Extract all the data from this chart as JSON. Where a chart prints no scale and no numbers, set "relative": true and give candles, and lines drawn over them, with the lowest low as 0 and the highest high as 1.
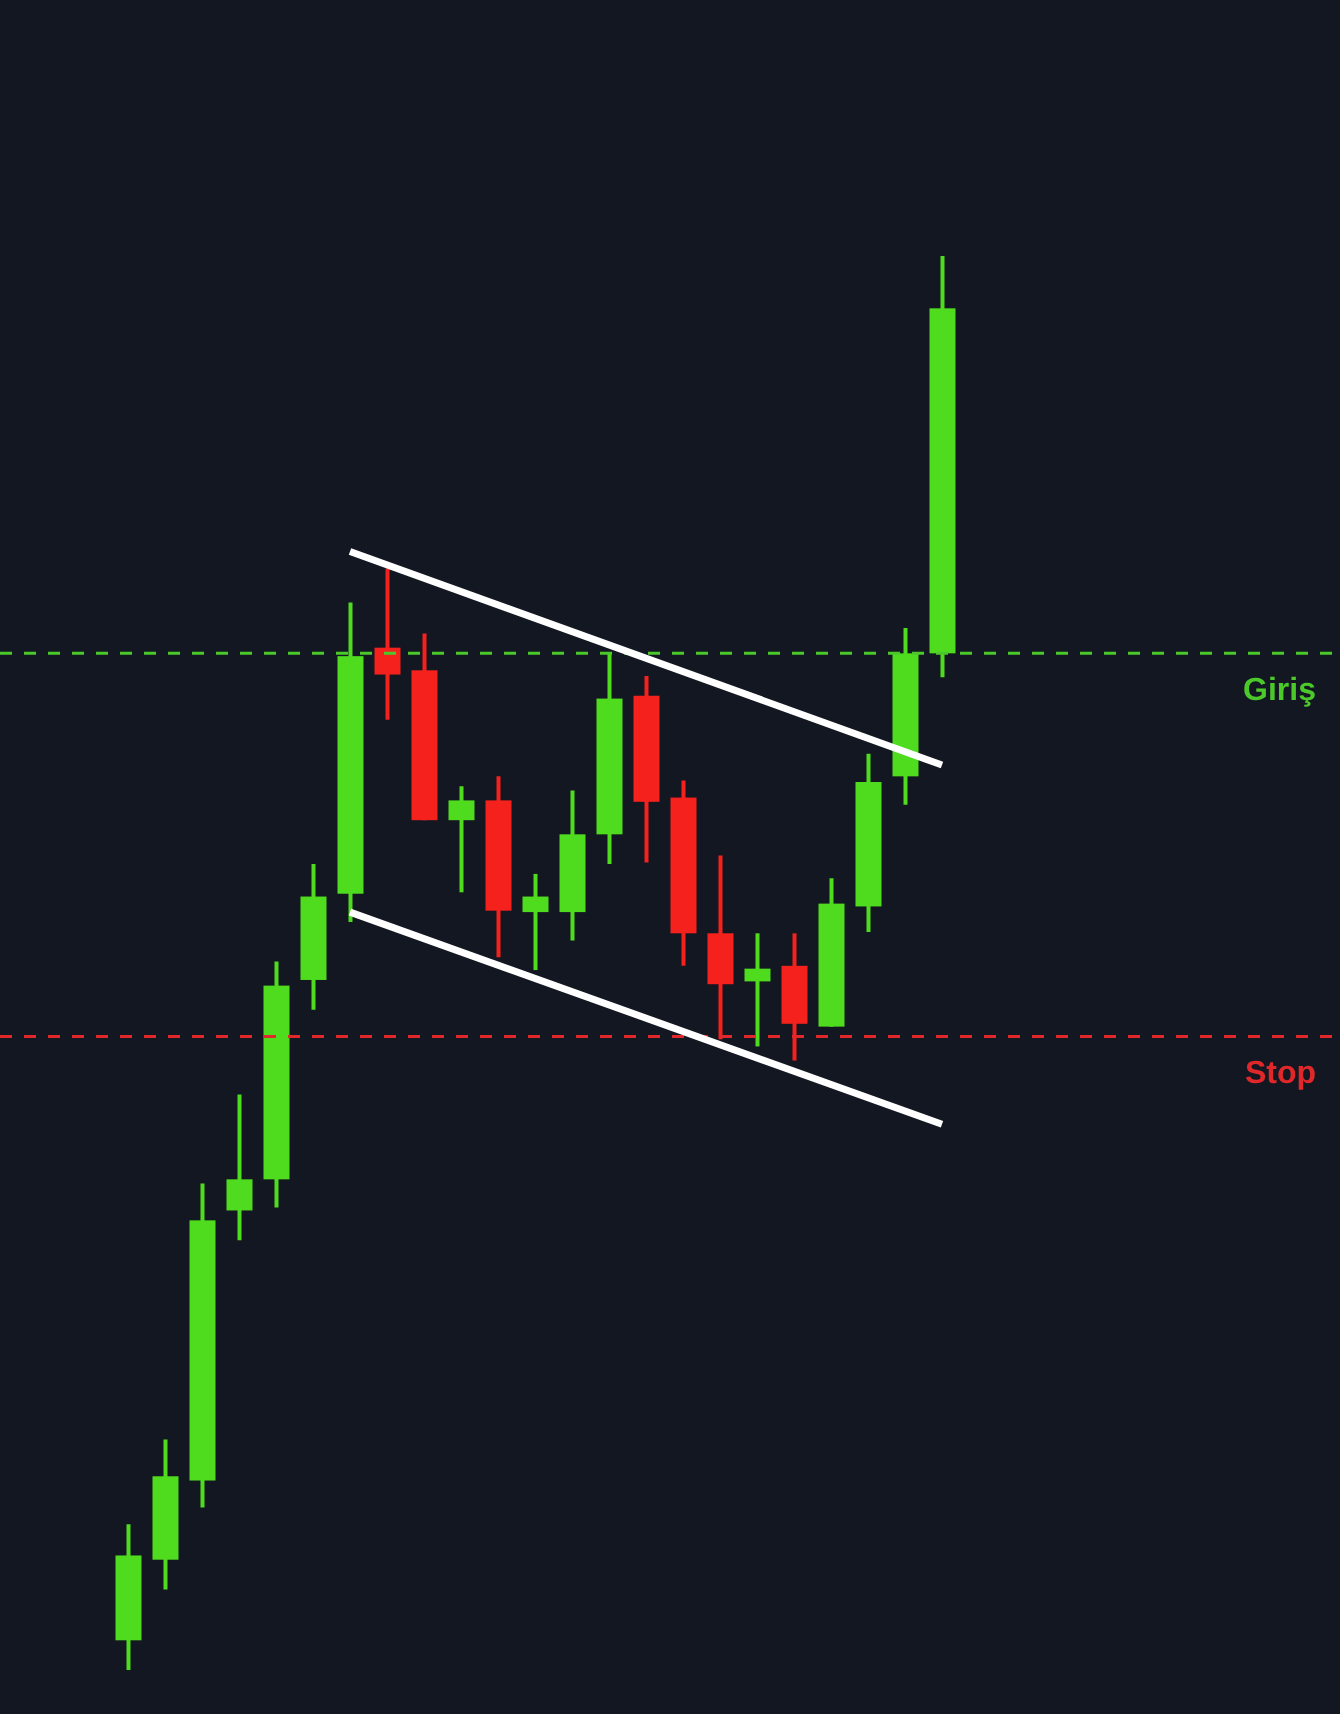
{
  "chart_data": {
    "type": "candlestick",
    "relative": true,
    "categories": [
      null,
      null,
      null,
      null,
      null,
      null,
      null,
      null,
      null,
      null,
      null,
      null,
      null,
      null,
      null,
      null,
      null,
      null,
      null,
      null,
      null,
      null,
      null
    ],
    "ohlc": [
      [
        0.021,
        0.103,
        0,
        0.081
      ],
      [
        0.078,
        0.163,
        0.057,
        0.137
      ],
      [
        0.134,
        0.344,
        0.115,
        0.318
      ],
      [
        0.325,
        0.407,
        0.304,
        0.347
      ],
      [
        0.347,
        0.501,
        0.327,
        0.484
      ],
      [
        0.488,
        0.57,
        0.467,
        0.547
      ],
      [
        0.549,
        0.755,
        0.529,
        0.717
      ],
      [
        0.723,
        0.779,
        0.672,
        0.704
      ],
      [
        0.707,
        0.733,
        0.601,
        0.601
      ],
      [
        0.601,
        0.625,
        0.55,
        0.615
      ],
      [
        0.615,
        0.632,
        0.504,
        0.537
      ],
      [
        0.536,
        0.563,
        0.495,
        0.547
      ],
      [
        0.536,
        0.622,
        0.516,
        0.591
      ],
      [
        0.591,
        0.72,
        0.57,
        0.687
      ],
      [
        0.689,
        0.703,
        0.571,
        0.614
      ],
      [
        0.617,
        0.629,
        0.498,
        0.521
      ],
      [
        0.521,
        0.576,
        0.446,
        0.485
      ],
      [
        0.487,
        0.521,
        0.441,
        0.496
      ],
      [
        0.498,
        0.521,
        0.431,
        0.457
      ],
      [
        0.455,
        0.56,
        0.455,
        0.542
      ],
      [
        0.54,
        0.648,
        0.522,
        0.628
      ],
      [
        0.632,
        0.737,
        0.612,
        0.719
      ],
      [
        0.719,
        1,
        0.702,
        0.963
      ]
    ],
    "colors": [
      "#4fdc1e",
      "#4fdc1e",
      "#4fdc1e",
      "#4fdc1e",
      "#4fdc1e",
      "#4fdc1e",
      "#4fdc1e",
      "#f5211c",
      "#f5211c",
      "#4fdc1e",
      "#f5211c",
      "#4fdc1e",
      "#4fdc1e",
      "#4fdc1e",
      "#f5211c",
      "#f5211c",
      "#f5211c",
      "#4fdc1e",
      "#f5211c",
      "#4fdc1e",
      "#4fdc1e",
      "#4fdc1e",
      "#4fdc1e"
    ],
    "series": [
      {
        "type": "line",
        "color": "#ffffff",
        "values": [
          null,
          null,
          null,
          null,
          null,
          null,
          0.791,
          null,
          null,
          null,
          null,
          null,
          null,
          null,
          null,
          null,
          null,
          null,
          null,
          null,
          null,
          null,
          0.64
        ]
      },
      {
        "type": "line",
        "color": "#ffffff",
        "values": [
          null,
          null,
          null,
          null,
          null,
          null,
          0.536,
          null,
          null,
          null,
          null,
          null,
          null,
          null,
          null,
          null,
          null,
          null,
          null,
          null,
          null,
          null,
          0.386
        ]
      }
    ],
    "ref_lines": [
      {
        "axis": "y",
        "value": 0.719,
        "label": "Giriş",
        "color": "#4cc92a",
        "line_style": "dashed"
      },
      {
        "axis": "y",
        "value": 0.448,
        "label": "Stop",
        "color": "#e0282a",
        "line_style": "dashed"
      }
    ],
    "grid": false,
    "marker": "none",
    "line_style": "solid"
  }
}
